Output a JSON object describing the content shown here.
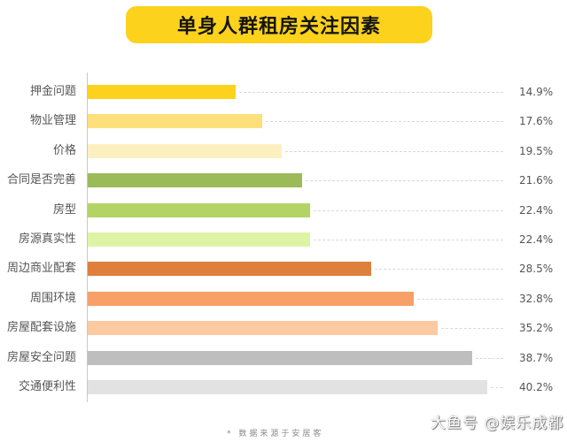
{
  "title": "单身人群租房关注因素",
  "source_note": "* 数据来源于安居客",
  "watermark": "大鱼号 @娱乐成都",
  "chart_data": {
    "type": "bar",
    "orientation": "horizontal",
    "title": "单身人群租房关注因素",
    "xlabel": "",
    "ylabel": "",
    "unit": "%",
    "grid": false,
    "legend": null,
    "categories": [
      "押金问题",
      "物业管理",
      "价格",
      "合同是否完善",
      "房型",
      "房源真实性",
      "周边商业配套",
      "周围环境",
      "房屋配套设施",
      "房屋安全问题",
      "交通便利性"
    ],
    "values": [
      14.9,
      17.6,
      19.5,
      21.6,
      22.4,
      22.4,
      28.5,
      32.8,
      35.2,
      38.7,
      40.2
    ],
    "value_labels": [
      "14.9%",
      "17.6%",
      "19.5%",
      "21.6%",
      "22.4%",
      "22.4%",
      "28.5%",
      "32.8%",
      "35.2%",
      "38.7%",
      "40.2%"
    ],
    "colors": [
      "#fcd21c",
      "#fde07a",
      "#fdf0c0",
      "#9bbb59",
      "#b3d465",
      "#def4a4",
      "#de7f3c",
      "#f7a068",
      "#fcc9a0",
      "#bebebe",
      "#e2e2e2"
    ],
    "annotation": "* 数据来源于安居客"
  }
}
